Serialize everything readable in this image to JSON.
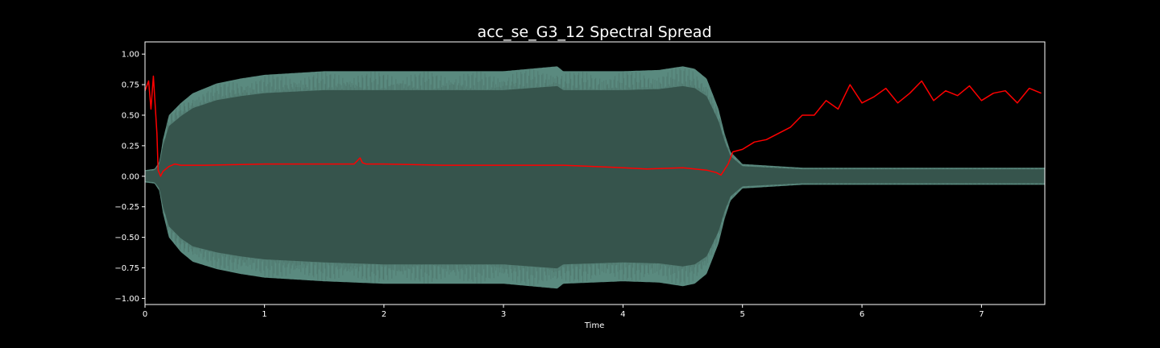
{
  "chart_data": {
    "type": "line",
    "title": "acc_se_G3_12 Spectral Spread",
    "xlabel": "Time",
    "ylabel": "",
    "xlim": [
      0,
      7.53
    ],
    "ylim": [
      -1.05,
      1.1
    ],
    "grid": false,
    "background": "#000000",
    "axes_color": "#ffffff",
    "x_ticks": [
      {
        "value": 0,
        "label": "0"
      },
      {
        "value": 1,
        "label": "1"
      },
      {
        "value": 2,
        "label": "2"
      },
      {
        "value": 3,
        "label": "3"
      },
      {
        "value": 4,
        "label": "4"
      },
      {
        "value": 5,
        "label": "5"
      },
      {
        "value": 6,
        "label": "6"
      },
      {
        "value": 7,
        "label": "7"
      }
    ],
    "y_ticks": [
      {
        "value": 1.0,
        "label": "1.00"
      },
      {
        "value": 0.75,
        "label": "0.75"
      },
      {
        "value": 0.5,
        "label": "0.50"
      },
      {
        "value": 0.25,
        "label": "0.25"
      },
      {
        "value": 0.0,
        "label": "0.00"
      },
      {
        "value": -0.25,
        "label": "−0.25"
      },
      {
        "value": -0.5,
        "label": "−0.50"
      },
      {
        "value": -0.75,
        "label": "−0.75"
      },
      {
        "value": -1.0,
        "label": "−1.00"
      }
    ],
    "waveform": {
      "color": "#5a8a7f",
      "inner_color": "#36544c",
      "envelope": {
        "x": [
          0,
          0.08,
          0.12,
          0.15,
          0.2,
          0.3,
          0.4,
          0.6,
          0.8,
          1.0,
          1.5,
          2.0,
          2.5,
          3.0,
          3.45,
          3.5,
          4.0,
          4.3,
          4.5,
          4.6,
          4.7,
          4.8,
          4.85,
          4.9,
          5.0,
          5.5,
          6.0,
          6.5,
          7.0,
          7.53
        ],
        "upper": [
          0.05,
          0.06,
          0.12,
          0.3,
          0.5,
          0.6,
          0.68,
          0.76,
          0.8,
          0.83,
          0.86,
          0.86,
          0.86,
          0.86,
          0.9,
          0.86,
          0.86,
          0.87,
          0.9,
          0.88,
          0.8,
          0.55,
          0.35,
          0.2,
          0.1,
          0.07,
          0.07,
          0.07,
          0.07,
          0.07
        ],
        "lower": [
          -0.05,
          -0.06,
          -0.12,
          -0.3,
          -0.5,
          -0.62,
          -0.7,
          -0.76,
          -0.8,
          -0.83,
          -0.86,
          -0.88,
          -0.88,
          -0.88,
          -0.92,
          -0.88,
          -0.86,
          -0.87,
          -0.9,
          -0.88,
          -0.8,
          -0.55,
          -0.35,
          -0.2,
          -0.1,
          -0.07,
          -0.07,
          -0.07,
          -0.07,
          -0.07
        ]
      }
    },
    "series": [
      {
        "color": "#ff0000",
        "x": [
          0,
          0.03,
          0.05,
          0.07,
          0.09,
          0.1,
          0.11,
          0.13,
          0.15,
          0.2,
          0.25,
          0.3,
          0.5,
          1.0,
          1.5,
          1.75,
          1.8,
          1.82,
          1.85,
          2.0,
          2.5,
          3.0,
          3.5,
          4.0,
          4.2,
          4.5,
          4.7,
          4.78,
          4.82,
          4.88,
          4.92,
          5.0,
          5.1,
          5.2,
          5.3,
          5.4,
          5.5,
          5.6,
          5.7,
          5.8,
          5.9,
          6.0,
          6.1,
          6.2,
          6.3,
          6.4,
          6.5,
          6.6,
          6.7,
          6.8,
          6.9,
          7.0,
          7.1,
          7.2,
          7.3,
          7.4,
          7.5
        ],
        "y": [
          0.7,
          0.78,
          0.55,
          0.82,
          0.5,
          0.35,
          0.05,
          0.0,
          0.04,
          0.08,
          0.1,
          0.09,
          0.09,
          0.1,
          0.1,
          0.1,
          0.15,
          0.11,
          0.1,
          0.1,
          0.09,
          0.09,
          0.09,
          0.07,
          0.06,
          0.07,
          0.05,
          0.03,
          0.01,
          0.1,
          0.2,
          0.22,
          0.28,
          0.3,
          0.35,
          0.4,
          0.5,
          0.5,
          0.62,
          0.55,
          0.75,
          0.6,
          0.65,
          0.72,
          0.6,
          0.68,
          0.78,
          0.62,
          0.7,
          0.66,
          0.74,
          0.62,
          0.68,
          0.7,
          0.6,
          0.72,
          0.68
        ]
      }
    ]
  }
}
